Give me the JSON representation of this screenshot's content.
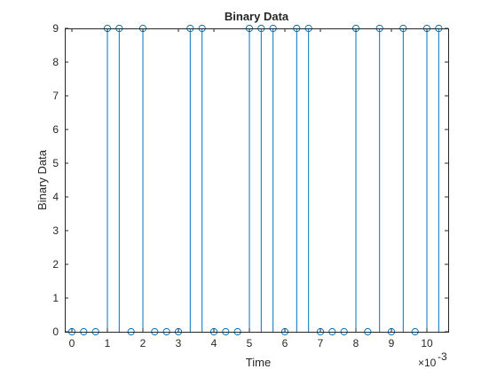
{
  "chart_data": {
    "type": "stem",
    "title": "Binary Data",
    "xlabel": "Time",
    "ylabel": "Binary Data",
    "x_exponent_label": "×10",
    "x_exponent_power": "-3",
    "xlim": [
      -0.0002,
      0.0106
    ],
    "ylim": [
      0,
      9
    ],
    "x_ticks": [
      0,
      1,
      2,
      3,
      4,
      5,
      6,
      7,
      8,
      9,
      10
    ],
    "y_ticks": [
      0,
      1,
      2,
      3,
      4,
      5,
      6,
      7,
      8,
      9
    ],
    "x_scale_factor": 0.001,
    "x": [
      0.0,
      0.000333,
      0.000667,
      0.001,
      0.001333,
      0.001667,
      0.002,
      0.002333,
      0.002667,
      0.003,
      0.003333,
      0.003667,
      0.004,
      0.004333,
      0.004667,
      0.005,
      0.005333,
      0.005667,
      0.006,
      0.006333,
      0.006667,
      0.007,
      0.007333,
      0.007667,
      0.008,
      0.008333,
      0.008667,
      0.009,
      0.009333,
      0.009667,
      0.01,
      0.010333
    ],
    "y": [
      0,
      0,
      0,
      9,
      9,
      0,
      9,
      0,
      0,
      0,
      9,
      9,
      0,
      0,
      0,
      9,
      9,
      9,
      0,
      9,
      9,
      0,
      0,
      0,
      9,
      0,
      9,
      0,
      9,
      0,
      9,
      9
    ],
    "marker": "circle",
    "grid": false,
    "legend": "none",
    "color": "#0072bd"
  }
}
